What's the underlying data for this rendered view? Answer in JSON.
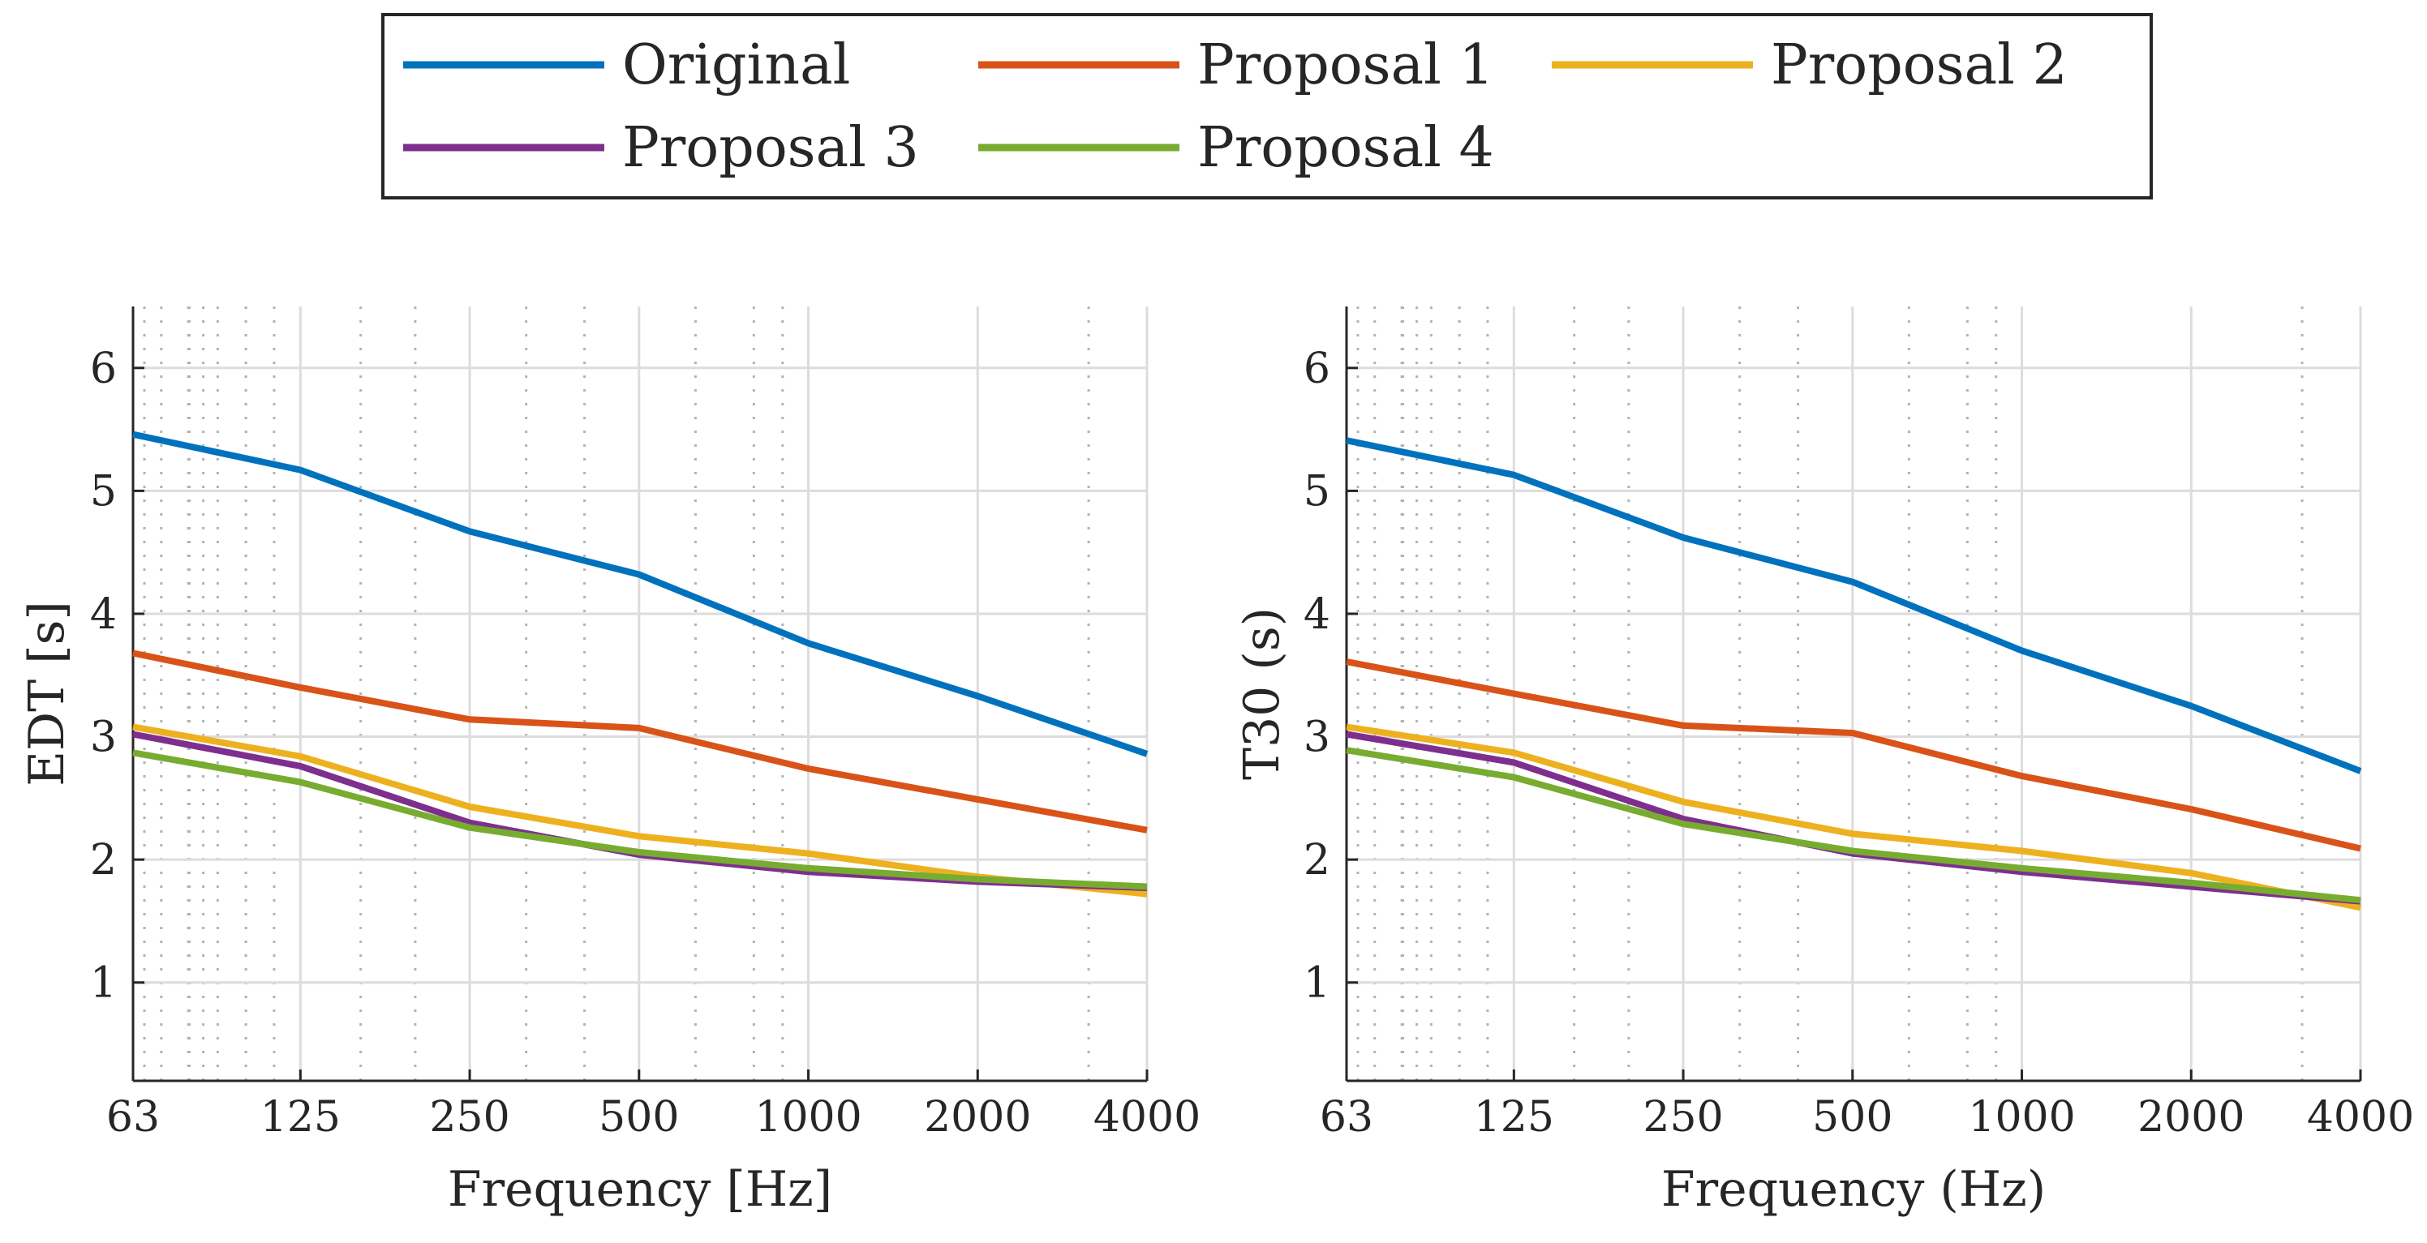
{
  "legend": {
    "placement": "top-center",
    "entries": [
      {
        "name": "Original",
        "color": "#0072BD"
      },
      {
        "name": "Proposal 1",
        "color": "#D95319"
      },
      {
        "name": "Proposal 2",
        "color": "#EDB120"
      },
      {
        "name": "Proposal 3",
        "color": "#7E2F8E"
      },
      {
        "name": "Proposal 4",
        "color": "#77AC30"
      }
    ]
  },
  "chart_data": [
    {
      "type": "line",
      "xscale": "log",
      "xlabel": "Frequency [Hz]",
      "ylabel": "EDT [s]",
      "x": [
        63,
        125,
        250,
        500,
        1000,
        2000,
        4000
      ],
      "x_ticks": [
        "63",
        "125",
        "250",
        "500",
        "1000",
        "2000",
        "4000"
      ],
      "xlim": [
        63,
        4000
      ],
      "y_ticks": [
        "1",
        "2",
        "3",
        "4",
        "5",
        "6"
      ],
      "ylim": [
        0.2,
        6.5
      ],
      "grid": true,
      "minor_grid_x": true,
      "series": [
        {
          "name": "Original",
          "color": "#0072BD",
          "values": [
            5.46,
            5.17,
            4.67,
            4.32,
            3.76,
            3.33,
            2.86
          ]
        },
        {
          "name": "Proposal 1",
          "color": "#D95319",
          "values": [
            3.68,
            3.4,
            3.14,
            3.07,
            2.74,
            2.49,
            2.24
          ]
        },
        {
          "name": "Proposal 2",
          "color": "#EDB120",
          "values": [
            3.08,
            2.84,
            2.43,
            2.19,
            2.05,
            1.86,
            1.72
          ]
        },
        {
          "name": "Proposal 3",
          "color": "#7E2F8E",
          "values": [
            3.02,
            2.76,
            2.3,
            2.04,
            1.9,
            1.82,
            1.77
          ]
        },
        {
          "name": "Proposal 4",
          "color": "#77AC30",
          "values": [
            2.87,
            2.63,
            2.26,
            2.06,
            1.93,
            1.84,
            1.78
          ]
        }
      ]
    },
    {
      "type": "line",
      "xscale": "log",
      "xlabel": "Frequency (Hz)",
      "ylabel": "T30 (s)",
      "x": [
        63,
        125,
        250,
        500,
        1000,
        2000,
        4000
      ],
      "x_ticks": [
        "63",
        "125",
        "250",
        "500",
        "1000",
        "2000",
        "4000"
      ],
      "xlim": [
        63,
        4000
      ],
      "y_ticks": [
        "1",
        "2",
        "3",
        "4",
        "5",
        "6"
      ],
      "ylim": [
        0.2,
        6.5
      ],
      "grid": true,
      "minor_grid_x": true,
      "series": [
        {
          "name": "Original",
          "color": "#0072BD",
          "values": [
            5.41,
            5.13,
            4.62,
            4.26,
            3.7,
            3.25,
            2.72
          ]
        },
        {
          "name": "Proposal 1",
          "color": "#D95319",
          "values": [
            3.61,
            3.35,
            3.09,
            3.03,
            2.68,
            2.41,
            2.09
          ]
        },
        {
          "name": "Proposal 2",
          "color": "#EDB120",
          "values": [
            3.08,
            2.87,
            2.47,
            2.21,
            2.07,
            1.89,
            1.61
          ]
        },
        {
          "name": "Proposal 3",
          "color": "#7E2F8E",
          "values": [
            3.02,
            2.79,
            2.33,
            2.05,
            1.9,
            1.78,
            1.66
          ]
        },
        {
          "name": "Proposal 4",
          "color": "#77AC30",
          "values": [
            2.89,
            2.67,
            2.29,
            2.07,
            1.93,
            1.81,
            1.67
          ]
        }
      ]
    }
  ]
}
